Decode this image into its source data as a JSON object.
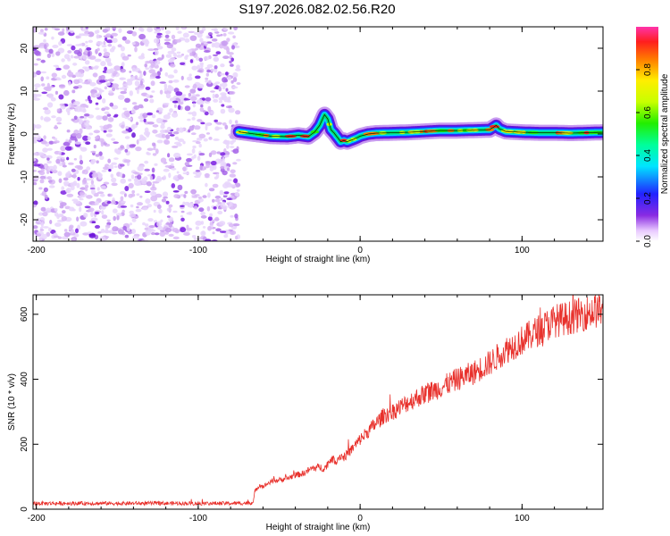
{
  "title": "S197.2026.082.02.56.R20",
  "chart_data": [
    {
      "type": "heatmap",
      "xlabel": "Height of straight line (km)",
      "ylabel": "Frequency (Hz)",
      "xlim": [
        -202,
        150
      ],
      "ylim": [
        -25,
        25
      ],
      "xticks": [
        -200,
        -100,
        0,
        100
      ],
      "yticks": [
        -20,
        -10,
        0,
        10,
        20
      ],
      "noise_region_x": [
        -202,
        -75
      ],
      "signal_trace": {
        "x": [
          -75,
          -65,
          -55,
          -45,
          -38,
          -32,
          -28,
          -25,
          -22,
          -20,
          -18,
          -16,
          -14,
          -12,
          -10,
          -8,
          -6,
          -4,
          -2,
          0,
          5,
          10,
          20,
          30,
          40,
          50,
          60,
          70,
          80,
          84,
          86,
          90,
          100,
          110,
          120,
          130,
          140,
          150
        ],
        "y": [
          0.5,
          0.0,
          -0.5,
          -0.6,
          -0.3,
          -0.6,
          0.5,
          2.0,
          4.5,
          3.5,
          1.0,
          0.2,
          -0.8,
          -1.8,
          -1.5,
          -1.8,
          -1.5,
          -1.2,
          -0.9,
          -0.5,
          0.0,
          0.2,
          0.3,
          0.4,
          0.6,
          0.8,
          0.8,
          0.9,
          1.0,
          2.0,
          1.2,
          0.6,
          0.4,
          0.3,
          0.3,
          0.2,
          0.3,
          0.4
        ]
      },
      "colorbar": {
        "label": "Normalized spectral amplitude",
        "range": [
          0.0,
          1.0
        ],
        "ticks": [
          "0.0",
          "0.2",
          "0.4",
          "0.6",
          "0.8"
        ]
      }
    },
    {
      "type": "line",
      "xlabel": "Height of straight line (km)",
      "ylabel": "SNR (10 * v/v)",
      "xlim": [
        -202,
        150
      ],
      "ylim": [
        0,
        660
      ],
      "xticks": [
        -200,
        -100,
        0,
        100
      ],
      "yticks": [
        0,
        200,
        400,
        600
      ],
      "color": "#e8312c",
      "series": [
        {
          "name": "SNR",
          "x": [
            -202,
            -150,
            -100,
            -75,
            -66,
            -65,
            -62,
            -60,
            -55,
            -50,
            -45,
            -40,
            -35,
            -30,
            -25,
            -22,
            -20,
            -18,
            -15,
            -12,
            -10,
            -8,
            -5,
            0,
            5,
            10,
            15,
            20,
            30,
            40,
            50,
            60,
            70,
            80,
            90,
            100,
            110,
            120,
            130,
            140,
            150
          ],
          "y": [
            18,
            18,
            18,
            18,
            20,
            55,
            75,
            70,
            85,
            90,
            95,
            105,
            110,
            125,
            130,
            125,
            140,
            155,
            150,
            165,
            160,
            170,
            185,
            215,
            240,
            265,
            290,
            300,
            330,
            355,
            375,
            400,
            420,
            450,
            490,
            520,
            550,
            580,
            590,
            605,
            615
          ]
        }
      ]
    }
  ]
}
